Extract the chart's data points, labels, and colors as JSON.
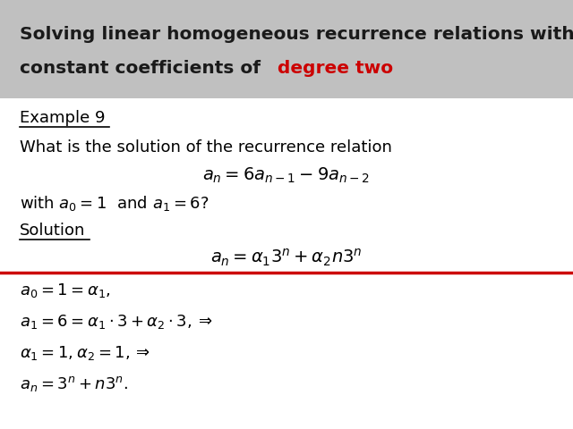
{
  "title_line1": "Solving linear homogeneous recurrence relations with",
  "title_line2_black": "constant coefficients of ",
  "title_line2_red": "degree two",
  "title_bg_color": "#c0c0c0",
  "title_text_color": "#1a1a1a",
  "title_red_color": "#cc0000",
  "body_bg_color": "#ffffff",
  "red_line_color": "#cc0000",
  "fig_width": 6.4,
  "fig_height": 4.8,
  "dpi": 100
}
